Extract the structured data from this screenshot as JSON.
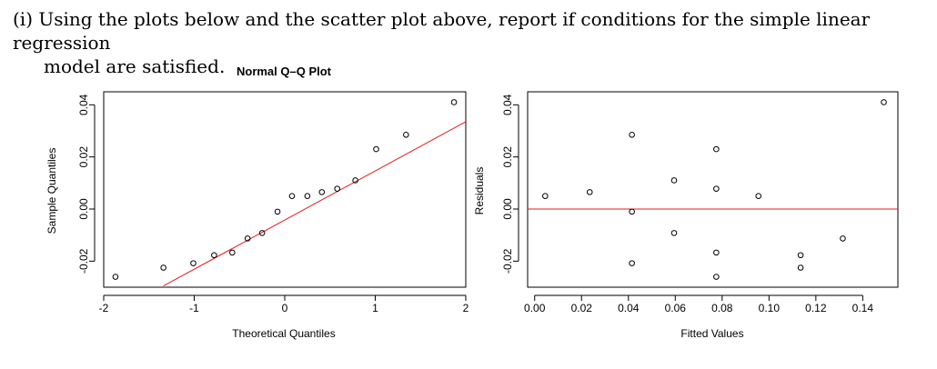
{
  "question": {
    "line1": "(i) Using the plots below and the scatter plot above, report if conditions for the simple linear regression",
    "line2": "model are satisfied."
  },
  "chart_data": [
    {
      "type": "scatter",
      "title": "Normal Q–Q Plot",
      "xlabel": "Theoretical Quantiles",
      "ylabel": "Sample Quantiles",
      "xlim": [
        -2,
        2
      ],
      "ylim": [
        -0.03,
        0.045
      ],
      "xticks": [
        -2,
        -1,
        0,
        1,
        2
      ],
      "xtick_labels": [
        "-2",
        "-1",
        "0",
        "1",
        "2"
      ],
      "yticks": [
        -0.02,
        0.0,
        0.02,
        0.04
      ],
      "ytick_labels": [
        "-0.02",
        "0.00",
        "0.02",
        "0.04"
      ],
      "points": [
        {
          "x": -1.87,
          "y": -0.026
        },
        {
          "x": -1.34,
          "y": -0.0225
        },
        {
          "x": -1.01,
          "y": -0.0208
        },
        {
          "x": -0.78,
          "y": -0.0177
        },
        {
          "x": -0.58,
          "y": -0.0167
        },
        {
          "x": -0.41,
          "y": -0.0113
        },
        {
          "x": -0.25,
          "y": -0.0092
        },
        {
          "x": -0.08,
          "y": -0.001
        },
        {
          "x": 0.08,
          "y": 0.005
        },
        {
          "x": 0.25,
          "y": 0.005
        },
        {
          "x": 0.41,
          "y": 0.0065
        },
        {
          "x": 0.58,
          "y": 0.0078
        },
        {
          "x": 0.78,
          "y": 0.011
        },
        {
          "x": 1.01,
          "y": 0.023
        },
        {
          "x": 1.34,
          "y": 0.0285
        },
        {
          "x": 1.87,
          "y": 0.041
        }
      ],
      "reference_line": {
        "x": [
          -1.34,
          2.0
        ],
        "y": [
          -0.0295,
          0.0335
        ],
        "color": "#e41a1c"
      }
    },
    {
      "type": "scatter",
      "title": "",
      "xlabel": "Fitted Values",
      "ylabel": "Residuals",
      "xlim": [
        -0.003,
        0.155
      ],
      "ylim": [
        -0.03,
        0.045
      ],
      "xticks": [
        0.0,
        0.02,
        0.04,
        0.06,
        0.08,
        0.1,
        0.12,
        0.14
      ],
      "xtick_labels": [
        "0.00",
        "0.02",
        "0.04",
        "0.06",
        "0.08",
        "0.10",
        "0.12",
        "0.14"
      ],
      "yticks": [
        -0.02,
        0.0,
        0.02,
        0.04
      ],
      "ytick_labels": [
        "-0.02",
        "0.00",
        "0.02",
        "0.04"
      ],
      "points": [
        {
          "x": 0.0045,
          "y": 0.005
        },
        {
          "x": 0.0235,
          "y": 0.0065
        },
        {
          "x": 0.0415,
          "y": 0.0285
        },
        {
          "x": 0.0415,
          "y": -0.001
        },
        {
          "x": 0.0415,
          "y": -0.0208
        },
        {
          "x": 0.0595,
          "y": 0.011
        },
        {
          "x": 0.0595,
          "y": -0.0092
        },
        {
          "x": 0.0775,
          "y": 0.023
        },
        {
          "x": 0.0775,
          "y": 0.0078
        },
        {
          "x": 0.0775,
          "y": -0.0167
        },
        {
          "x": 0.0775,
          "y": -0.026
        },
        {
          "x": 0.0955,
          "y": 0.005
        },
        {
          "x": 0.1135,
          "y": -0.0177
        },
        {
          "x": 0.1135,
          "y": -0.0225
        },
        {
          "x": 0.1315,
          "y": -0.0113
        },
        {
          "x": 0.149,
          "y": 0.041
        }
      ],
      "reference_line": {
        "y": 0.0,
        "color": "#e41a1c"
      }
    }
  ]
}
